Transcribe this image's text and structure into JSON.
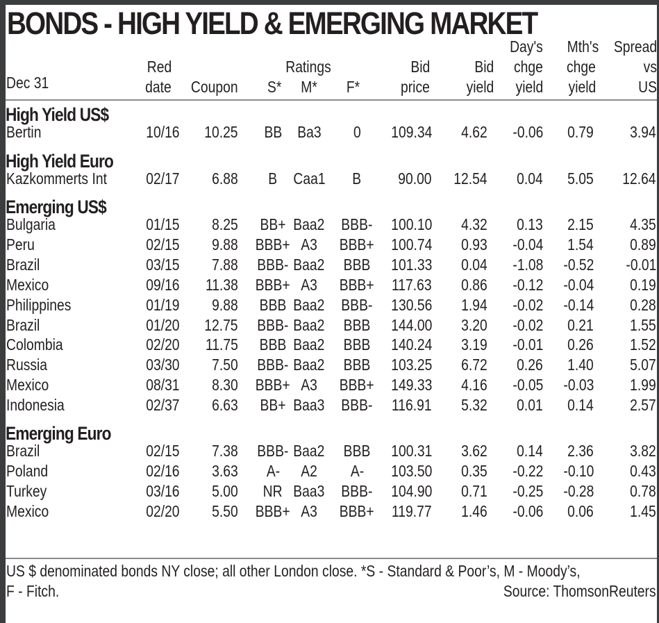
{
  "title": "BONDS - HIGH YIELD & EMERGING MARKET",
  "header": {
    "date_label": "Dec 31",
    "columns": {
      "red_date": [
        "Red",
        "date"
      ],
      "coupon": "Coupon",
      "ratings": "Ratings",
      "s": "S*",
      "m": "M*",
      "f": "F*",
      "bid_price": [
        "Bid",
        "price"
      ],
      "bid_yield": [
        "Bid",
        "yield"
      ],
      "days_chge": [
        "Day's",
        "chge",
        "yield"
      ],
      "mths_chge": [
        "Mth's",
        "chge",
        "yield"
      ],
      "spread": [
        "Spread",
        "vs",
        "US"
      ]
    }
  },
  "sections": [
    {
      "name": "High Yield US$",
      "rows": [
        {
          "name": "Bertin",
          "red_date": "10/16",
          "coupon": "10.25",
          "s": "BB",
          "m": "Ba3",
          "f": "0",
          "bid_price": "109.34",
          "bid_yield": "4.62",
          "day_chge": "-0.06",
          "mth_chge": "0.79",
          "spread": "3.94"
        }
      ]
    },
    {
      "name": "High Yield Euro",
      "rows": [
        {
          "name": "Kazkommerts Int",
          "red_date": "02/17",
          "coupon": "6.88",
          "s": "B",
          "m": "Caa1",
          "f": "B",
          "bid_price": "90.00",
          "bid_yield": "12.54",
          "day_chge": "0.04",
          "mth_chge": "5.05",
          "spread": "12.64"
        }
      ]
    },
    {
      "name": "Emerging US$",
      "rows": [
        {
          "name": "Bulgaria",
          "red_date": "01/15",
          "coupon": "8.25",
          "s": "BB+",
          "m": "Baa2",
          "f": "BBB-",
          "bid_price": "100.10",
          "bid_yield": "4.32",
          "day_chge": "0.13",
          "mth_chge": "2.15",
          "spread": "4.35"
        },
        {
          "name": "Peru",
          "red_date": "02/15",
          "coupon": "9.88",
          "s": "BBB+",
          "m": "A3",
          "f": "BBB+",
          "bid_price": "100.74",
          "bid_yield": "0.93",
          "day_chge": "-0.04",
          "mth_chge": "1.54",
          "spread": "0.89"
        },
        {
          "name": "Brazil",
          "red_date": "03/15",
          "coupon": "7.88",
          "s": "BBB-",
          "m": "Baa2",
          "f": "BBB",
          "bid_price": "101.33",
          "bid_yield": "0.04",
          "day_chge": "-1.08",
          "mth_chge": "-0.52",
          "spread": "-0.01"
        },
        {
          "name": "Mexico",
          "red_date": "09/16",
          "coupon": "11.38",
          "s": "BBB+",
          "m": "A3",
          "f": "BBB+",
          "bid_price": "117.63",
          "bid_yield": "0.86",
          "day_chge": "-0.12",
          "mth_chge": "-0.04",
          "spread": "0.19"
        },
        {
          "name": "Philippines",
          "red_date": "01/19",
          "coupon": "9.88",
          "s": "BBB",
          "m": "Baa2",
          "f": "BBB-",
          "bid_price": "130.56",
          "bid_yield": "1.94",
          "day_chge": "-0.02",
          "mth_chge": "-0.14",
          "spread": "0.28"
        },
        {
          "name": "Brazil",
          "red_date": "01/20",
          "coupon": "12.75",
          "s": "BBB-",
          "m": "Baa2",
          "f": "BBB",
          "bid_price": "144.00",
          "bid_yield": "3.20",
          "day_chge": "-0.02",
          "mth_chge": "0.21",
          "spread": "1.55"
        },
        {
          "name": "Colombia",
          "red_date": "02/20",
          "coupon": "11.75",
          "s": "BBB",
          "m": "Baa2",
          "f": "BBB",
          "bid_price": "140.24",
          "bid_yield": "3.19",
          "day_chge": "-0.01",
          "mth_chge": "0.26",
          "spread": "1.52"
        },
        {
          "name": "Russia",
          "red_date": "03/30",
          "coupon": "7.50",
          "s": "BBB-",
          "m": "Baa2",
          "f": "BBB",
          "bid_price": "103.25",
          "bid_yield": "6.72",
          "day_chge": "0.26",
          "mth_chge": "1.40",
          "spread": "5.07"
        },
        {
          "name": "Mexico",
          "red_date": "08/31",
          "coupon": "8.30",
          "s": "BBB+",
          "m": "A3",
          "f": "BBB+",
          "bid_price": "149.33",
          "bid_yield": "4.16",
          "day_chge": "-0.05",
          "mth_chge": "-0.03",
          "spread": "1.99"
        },
        {
          "name": "Indonesia",
          "red_date": "02/37",
          "coupon": "6.63",
          "s": "BB+",
          "m": "Baa3",
          "f": "BBB-",
          "bid_price": "116.91",
          "bid_yield": "5.32",
          "day_chge": "0.01",
          "mth_chge": "0.14",
          "spread": "2.57"
        }
      ]
    },
    {
      "name": "Emerging Euro",
      "rows": [
        {
          "name": "Brazil",
          "red_date": "02/15",
          "coupon": "7.38",
          "s": "BBB-",
          "m": "Baa2",
          "f": "BBB",
          "bid_price": "100.31",
          "bid_yield": "3.62",
          "day_chge": "0.14",
          "mth_chge": "2.36",
          "spread": "3.82"
        },
        {
          "name": "Poland",
          "red_date": "02/16",
          "coupon": "3.63",
          "s": "A-",
          "m": "A2",
          "f": "A-",
          "bid_price": "103.50",
          "bid_yield": "0.35",
          "day_chge": "-0.22",
          "mth_chge": "-0.10",
          "spread": "0.43"
        },
        {
          "name": "Turkey",
          "red_date": "03/16",
          "coupon": "5.00",
          "s": "NR",
          "m": "Baa3",
          "f": "BBB-",
          "bid_price": "104.90",
          "bid_yield": "0.71",
          "day_chge": "-0.25",
          "mth_chge": "-0.28",
          "spread": "0.78"
        },
        {
          "name": "Mexico",
          "red_date": "02/20",
          "coupon": "5.50",
          "s": "BBB+",
          "m": "A3",
          "f": "BBB+",
          "bid_price": "119.77",
          "bid_yield": "1.46",
          "day_chge": "-0.06",
          "mth_chge": "0.06",
          "spread": "1.45"
        }
      ]
    }
  ],
  "footer": {
    "note_line1": "US $ denominated bonds NY close; all other London close. *S - Standard & Poor’s, M - Moody’s,",
    "note_line2": "F - Fitch.",
    "source": "Source: ThomsonReuters"
  }
}
